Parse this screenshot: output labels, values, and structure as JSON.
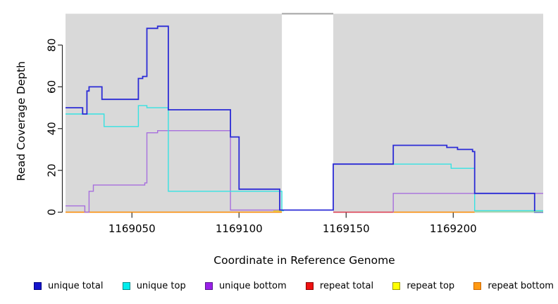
{
  "figure": {
    "y_axis_label": "Read Coverage Depth",
    "x_axis_label": "Coordinate in Reference Genome"
  },
  "chart_data": {
    "type": "line",
    "subtype": "step-coverage-plot",
    "title": "",
    "xlabel": "Coordinate in Reference Genome",
    "ylabel": "Read Coverage Depth",
    "xlim": [
      1169019,
      1169242
    ],
    "ylim": [
      0,
      95
    ],
    "grid": "off",
    "legend_position": "bottom",
    "x_ticks": [
      {
        "value": 1169050,
        "label": "1169050"
      },
      {
        "value": 1169100,
        "label": "1169100"
      },
      {
        "value": 1169150,
        "label": "1169150"
      },
      {
        "value": 1169200,
        "label": "1169200"
      }
    ],
    "y_ticks": [
      {
        "value": 0,
        "label": "0"
      },
      {
        "value": 20,
        "label": "20"
      },
      {
        "value": 40,
        "label": "40"
      },
      {
        "value": 60,
        "label": "60"
      },
      {
        "value": 80,
        "label": "80"
      }
    ],
    "background_regions": [
      {
        "x1": 1169019,
        "x2": 1169120,
        "fill": "#d9d9d9"
      },
      {
        "x1": 1169144,
        "x2": 1169242,
        "fill": "#d9d9d9"
      }
    ],
    "gap_top_line": {
      "x1": 1169120,
      "x2": 1169144,
      "y": 95,
      "color": "#a3a3a3"
    },
    "series": [
      {
        "name": "repeat bottom",
        "color": "#ff8c00",
        "width": 1.6,
        "subpaths": [
          {
            "points": [
              [
                1169019,
                0
              ]
            ],
            "end": 1169120
          },
          {
            "points": [
              [
                1169172,
                0
              ]
            ],
            "end": 1169210
          }
        ]
      },
      {
        "name": "repeat top",
        "color": "#f0f00e",
        "width": 1.4,
        "subpaths": [
          {
            "points": [
              [
                1169116,
                0.6
              ]
            ],
            "end": 1169120
          }
        ]
      },
      {
        "name": "repeat total",
        "color": "#e03a4e",
        "width": 1.6,
        "subpaths": [
          {
            "points": [
              [
                1169144,
                0
              ]
            ],
            "end": 1169172
          }
        ]
      },
      {
        "name": "unique bottom",
        "color": "#a76fdd",
        "width": 1.4,
        "subpaths": [
          {
            "points": [
              [
                1169019,
                3
              ],
              [
                1169028,
                0
              ],
              [
                1169030,
                10
              ],
              [
                1169032,
                13
              ],
              [
                1169056,
                14
              ],
              [
                1169057,
                38
              ],
              [
                1169062,
                39
              ],
              [
                1169096,
                1
              ]
            ],
            "end": 1169120
          },
          {
            "points": [
              [
                1169172,
                0
              ],
              [
                1169172,
                9
              ]
            ],
            "end": 1169242
          }
        ]
      },
      {
        "name": "unique top",
        "color": "#35e2e2",
        "width": 1.4,
        "subpaths": [
          {
            "points": [
              [
                1169019,
                47
              ],
              [
                1169037,
                41
              ],
              [
                1169053,
                51
              ],
              [
                1169057,
                50
              ],
              [
                1169067,
                10
              ],
              [
                1169120,
                0.7
              ]
            ],
            "end": 1169121
          },
          {
            "points": [
              [
                1169144,
                23
              ],
              [
                1169199,
                21
              ],
              [
                1169210,
                0.7
              ]
            ],
            "end": 1169242
          }
        ]
      },
      {
        "name": "unique total",
        "color": "#2b2bd6",
        "width": 1.8,
        "subpaths": [
          {
            "points": [
              [
                1169019,
                50
              ],
              [
                1169027,
                47
              ],
              [
                1169029,
                58
              ],
              [
                1169030,
                60
              ],
              [
                1169036,
                54
              ],
              [
                1169053,
                64
              ],
              [
                1169055,
                65
              ],
              [
                1169057,
                88
              ],
              [
                1169062,
                89
              ],
              [
                1169067,
                49
              ],
              [
                1169096,
                36
              ],
              [
                1169100,
                11
              ],
              [
                1169119,
                1
              ],
              [
                1169144,
                23
              ],
              [
                1169172,
                32
              ],
              [
                1169197,
                31
              ],
              [
                1169202,
                30
              ],
              [
                1169209,
                29
              ],
              [
                1169210,
                9
              ],
              [
                1169238,
                0
              ]
            ],
            "end": 1169242
          }
        ]
      }
    ],
    "zero_line_segments": [
      {
        "x1": 1169210,
        "x2": 1169242,
        "y": 0.2,
        "color": "#9bd8a4"
      }
    ],
    "axis_color": "#2a2a2a",
    "legend": [
      {
        "label": "unique total",
        "fill": "#1414cc",
        "border": "#000080"
      },
      {
        "label": "unique top",
        "fill": "#00eeee",
        "border": "#008b8b"
      },
      {
        "label": "unique bottom",
        "fill": "#9a1fe8",
        "border": "#551a8b"
      },
      {
        "label": "repeat total",
        "fill": "#ee1111",
        "border": "#8b0000"
      },
      {
        "label": "repeat top",
        "fill": "#ffff00",
        "border": "#9a9a00"
      },
      {
        "label": "repeat bottom",
        "fill": "#ff9912",
        "border": "#cc6600"
      }
    ]
  }
}
